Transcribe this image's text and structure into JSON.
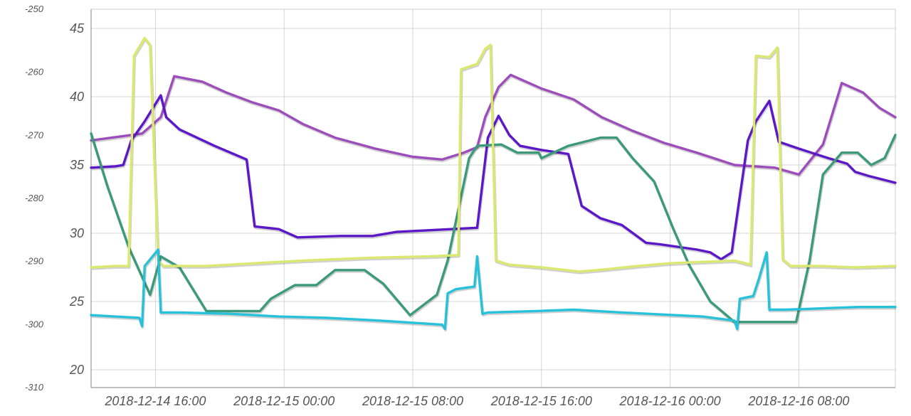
{
  "chart_data": {
    "type": "line",
    "title": "",
    "xlabel": "",
    "ylabel": "",
    "grid": true,
    "legend": "none",
    "x_axis": {
      "kind": "time",
      "range": [
        "2018-12-14 12:00",
        "2018-12-16 14:00"
      ],
      "ticks": [
        "2018-12-14 16:00",
        "2018-12-15 00:00",
        "2018-12-15 08:00",
        "2018-12-15 16:00",
        "2018-12-16 00:00",
        "2018-12-16 08:00"
      ]
    },
    "y_axis_left": {
      "range": [
        -310,
        -250
      ],
      "ticks": [
        "-250",
        "-260",
        "-270",
        "-280",
        "-290",
        "-300",
        "-310"
      ]
    },
    "y_axis_inner": {
      "range": [
        20,
        45
      ],
      "ticks": [
        "45",
        "40",
        "35",
        "30",
        "25",
        "20"
      ]
    },
    "series": [
      {
        "color": "#9c4dbb",
        "axis": "inner",
        "points": [
          [
            "2018-12-14 12:00",
            36.8
          ],
          [
            "2018-12-14 15:10",
            37.3
          ],
          [
            "2018-12-14 16:20",
            38.5
          ],
          [
            "2018-12-14 17:10",
            41.5
          ],
          [
            "2018-12-14 18:55",
            41.1
          ],
          [
            "2018-12-14 20:25",
            40.3
          ],
          [
            "2018-12-14 22:00",
            39.6
          ],
          [
            "2018-12-14 23:40",
            39.0
          ],
          [
            "2018-12-15 01:10",
            38.0
          ],
          [
            "2018-12-15 03:10",
            37.0
          ],
          [
            "2018-12-15 05:40",
            36.2
          ],
          [
            "2018-12-15 08:00",
            35.6
          ],
          [
            "2018-12-15 09:50",
            35.4
          ],
          [
            "2018-12-15 11:10",
            35.9
          ],
          [
            "2018-12-15 12:00",
            36.3
          ],
          [
            "2018-12-15 12:30",
            38.5
          ],
          [
            "2018-12-15 13:20",
            40.7
          ],
          [
            "2018-12-15 14:05",
            41.6
          ],
          [
            "2018-12-15 16:00",
            40.6
          ],
          [
            "2018-12-15 18:00",
            39.8
          ],
          [
            "2018-12-15 19:45",
            38.5
          ],
          [
            "2018-12-15 21:40",
            37.5
          ],
          [
            "2018-12-15 23:40",
            36.6
          ],
          [
            "2018-12-16 01:40",
            35.9
          ],
          [
            "2018-12-16 04:00",
            35.0
          ],
          [
            "2018-12-16 06:30",
            34.8
          ],
          [
            "2018-12-16 08:00",
            34.3
          ],
          [
            "2018-12-16 09:30",
            36.5
          ],
          [
            "2018-12-16 10:40",
            41.0
          ],
          [
            "2018-12-16 12:00",
            40.3
          ],
          [
            "2018-12-16 13:00",
            39.2
          ],
          [
            "2018-12-16 14:00",
            38.5
          ]
        ]
      },
      {
        "color": "#5c18c8",
        "axis": "inner",
        "points": [
          [
            "2018-12-14 12:00",
            34.8
          ],
          [
            "2018-12-14 13:30",
            34.9
          ],
          [
            "2018-12-14 14:00",
            35.0
          ],
          [
            "2018-12-14 14:30",
            36.8
          ],
          [
            "2018-12-14 15:20",
            38.2
          ],
          [
            "2018-12-14 16:20",
            40.1
          ],
          [
            "2018-12-14 16:40",
            38.5
          ],
          [
            "2018-12-14 17:30",
            37.6
          ],
          [
            "2018-12-14 19:40",
            36.4
          ],
          [
            "2018-12-14 21:40",
            35.4
          ],
          [
            "2018-12-14 22:10",
            30.5
          ],
          [
            "2018-12-14 23:40",
            30.3
          ],
          [
            "2018-12-15 00:50",
            29.7
          ],
          [
            "2018-12-15 03:30",
            29.8
          ],
          [
            "2018-12-15 05:30",
            29.8
          ],
          [
            "2018-12-15 07:00",
            30.1
          ],
          [
            "2018-12-15 12:00",
            30.4
          ],
          [
            "2018-12-15 12:40",
            37.0
          ],
          [
            "2018-12-15 13:20",
            38.6
          ],
          [
            "2018-12-15 14:00",
            37.2
          ],
          [
            "2018-12-15 14:40",
            36.4
          ],
          [
            "2018-12-15 16:00",
            36.1
          ],
          [
            "2018-12-15 17:40",
            35.8
          ],
          [
            "2018-12-15 18:30",
            32.0
          ],
          [
            "2018-12-15 19:40",
            31.1
          ],
          [
            "2018-12-15 21:00",
            30.6
          ],
          [
            "2018-12-15 22:30",
            29.3
          ],
          [
            "2018-12-15 23:20",
            29.2
          ],
          [
            "2018-12-16 01:40",
            28.8
          ],
          [
            "2018-12-16 02:30",
            28.6
          ],
          [
            "2018-12-16 03:10",
            28.1
          ],
          [
            "2018-12-16 03:50",
            28.6
          ],
          [
            "2018-12-16 04:00",
            30.0
          ],
          [
            "2018-12-16 04:50",
            36.8
          ],
          [
            "2018-12-16 05:20",
            38.2
          ],
          [
            "2018-12-16 06:10",
            39.7
          ],
          [
            "2018-12-16 06:45",
            36.7
          ],
          [
            "2018-12-16 08:00",
            36.2
          ],
          [
            "2018-12-16 09:50",
            35.5
          ],
          [
            "2018-12-16 11:00",
            35.1
          ],
          [
            "2018-12-16 11:30",
            34.5
          ],
          [
            "2018-12-16 12:20",
            34.2
          ],
          [
            "2018-12-16 14:00",
            33.7
          ]
        ]
      },
      {
        "color": "#3b9a7a",
        "axis": "inner",
        "points": [
          [
            "2018-12-14 12:00",
            37.3
          ],
          [
            "2018-12-14 13:00",
            33.5
          ],
          [
            "2018-12-14 14:20",
            29.0
          ],
          [
            "2018-12-14 15:40",
            25.5
          ],
          [
            "2018-12-14 16:20",
            28.3
          ],
          [
            "2018-12-14 17:30",
            27.5
          ],
          [
            "2018-12-14 19:10",
            24.3
          ],
          [
            "2018-12-14 22:30",
            24.3
          ],
          [
            "2018-12-14 23:10",
            25.2
          ],
          [
            "2018-12-15 00:40",
            26.2
          ],
          [
            "2018-12-15 02:00",
            26.2
          ],
          [
            "2018-12-15 03:10",
            27.3
          ],
          [
            "2018-12-15 05:00",
            27.3
          ],
          [
            "2018-12-15 06:10",
            26.3
          ],
          [
            "2018-12-15 07:50",
            24.0
          ],
          [
            "2018-12-15 09:30",
            25.5
          ],
          [
            "2018-12-15 10:10",
            28.0
          ],
          [
            "2018-12-15 11:30",
            35.5
          ],
          [
            "2018-12-15 12:00",
            36.4
          ],
          [
            "2018-12-15 13:30",
            36.5
          ],
          [
            "2018-12-15 14:30",
            35.9
          ],
          [
            "2018-12-15 15:50",
            35.9
          ],
          [
            "2018-12-15 16:00",
            35.5
          ],
          [
            "2018-12-15 17:40",
            36.4
          ],
          [
            "2018-12-15 19:40",
            37.0
          ],
          [
            "2018-12-15 20:40",
            37.0
          ],
          [
            "2018-12-15 21:40",
            35.5
          ],
          [
            "2018-12-15 23:00",
            33.8
          ],
          [
            "2018-12-16 00:10",
            30.4
          ],
          [
            "2018-12-16 01:10",
            27.7
          ],
          [
            "2018-12-16 02:30",
            25.0
          ],
          [
            "2018-12-16 04:00",
            23.5
          ],
          [
            "2018-12-16 06:30",
            23.5
          ],
          [
            "2018-12-16 07:50",
            23.5
          ],
          [
            "2018-12-16 08:40",
            28.0
          ],
          [
            "2018-12-16 09:30",
            34.3
          ],
          [
            "2018-12-16 10:40",
            35.9
          ],
          [
            "2018-12-16 11:40",
            35.9
          ],
          [
            "2018-12-16 12:30",
            35.0
          ],
          [
            "2018-12-16 13:20",
            35.5
          ],
          [
            "2018-12-16 14:00",
            37.2
          ]
        ]
      },
      {
        "color": "#dbe870",
        "axis": "inner",
        "points": [
          [
            "2018-12-14 12:00",
            27.5
          ],
          [
            "2018-12-14 13:30",
            27.6
          ],
          [
            "2018-12-14 14:20",
            27.6
          ],
          [
            "2018-12-14 14:40",
            43.0
          ],
          [
            "2018-12-14 15:20",
            44.3
          ],
          [
            "2018-12-14 15:40",
            43.8
          ],
          [
            "2018-12-14 16:10",
            28.0
          ],
          [
            "2018-12-14 16:30",
            27.6
          ],
          [
            "2018-12-14 19:10",
            27.6
          ],
          [
            "2018-12-14 22:10",
            27.8
          ],
          [
            "2018-12-15 01:10",
            28.0
          ],
          [
            "2018-12-15 05:10",
            28.2
          ],
          [
            "2018-12-15 09:00",
            28.3
          ],
          [
            "2018-12-15 10:50",
            28.4
          ],
          [
            "2018-12-15 11:00",
            42.0
          ],
          [
            "2018-12-15 12:00",
            42.4
          ],
          [
            "2018-12-15 12:30",
            43.5
          ],
          [
            "2018-12-15 12:50",
            43.8
          ],
          [
            "2018-12-15 13:10",
            28.0
          ],
          [
            "2018-12-15 14:00",
            27.7
          ],
          [
            "2018-12-15 16:00",
            27.5
          ],
          [
            "2018-12-15 18:20",
            27.2
          ],
          [
            "2018-12-15 19:30",
            27.3
          ],
          [
            "2018-12-15 22:00",
            27.6
          ],
          [
            "2018-12-16 00:00",
            27.8
          ],
          [
            "2018-12-16 04:00",
            28.0
          ],
          [
            "2018-12-16 05:00",
            27.7
          ],
          [
            "2018-12-16 05:20",
            43.0
          ],
          [
            "2018-12-16 06:10",
            42.9
          ],
          [
            "2018-12-16 06:40",
            43.6
          ],
          [
            "2018-12-16 07:00",
            28.1
          ],
          [
            "2018-12-16 07:30",
            27.6
          ],
          [
            "2018-12-16 09:20",
            27.6
          ],
          [
            "2018-12-16 11:30",
            27.5
          ],
          [
            "2018-12-16 14:00",
            27.6
          ]
        ]
      },
      {
        "color": "#27c1d9",
        "axis": "inner",
        "points": [
          [
            "2018-12-14 12:00",
            24.0
          ],
          [
            "2018-12-14 15:00",
            23.8
          ],
          [
            "2018-12-14 15:10",
            23.2
          ],
          [
            "2018-12-14 15:20",
            27.6
          ],
          [
            "2018-12-14 16:10",
            28.8
          ],
          [
            "2018-12-14 16:20",
            24.2
          ],
          [
            "2018-12-14 17:30",
            24.2
          ],
          [
            "2018-12-14 20:40",
            24.1
          ],
          [
            "2018-12-14 23:40",
            23.9
          ],
          [
            "2018-12-15 02:40",
            23.8
          ],
          [
            "2018-12-15 06:00",
            23.6
          ],
          [
            "2018-12-15 09:50",
            23.3
          ],
          [
            "2018-12-15 10:00",
            23.0
          ],
          [
            "2018-12-15 10:10",
            25.6
          ],
          [
            "2018-12-15 10:40",
            25.9
          ],
          [
            "2018-12-15 11:50",
            26.1
          ],
          [
            "2018-12-15 12:00",
            28.3
          ],
          [
            "2018-12-15 12:20",
            24.1
          ],
          [
            "2018-12-15 12:40",
            24.2
          ],
          [
            "2018-12-15 15:40",
            24.3
          ],
          [
            "2018-12-15 18:00",
            24.4
          ],
          [
            "2018-12-15 21:00",
            24.2
          ],
          [
            "2018-12-16 00:20",
            24.0
          ],
          [
            "2018-12-16 02:00",
            23.9
          ],
          [
            "2018-12-16 04:00",
            23.6
          ],
          [
            "2018-12-16 04:10",
            23.0
          ],
          [
            "2018-12-16 04:20",
            25.2
          ],
          [
            "2018-12-16 05:10",
            25.4
          ],
          [
            "2018-12-16 05:30",
            26.6
          ],
          [
            "2018-12-16 06:00",
            28.6
          ],
          [
            "2018-12-16 06:10",
            24.4
          ],
          [
            "2018-12-16 07:10",
            24.4
          ],
          [
            "2018-12-16 09:30",
            24.5
          ],
          [
            "2018-12-16 11:40",
            24.6
          ],
          [
            "2018-12-16 14:00",
            24.6
          ]
        ]
      }
    ]
  }
}
